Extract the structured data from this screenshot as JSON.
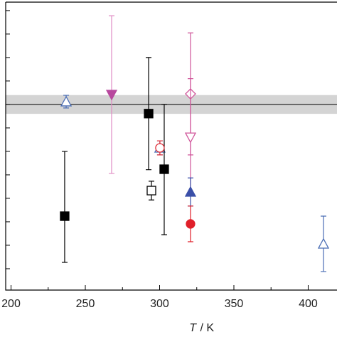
{
  "chart_data": {
    "type": "scatter",
    "x_label_symbol": "T",
    "x_label_unit": " / K",
    "xlim": [
      196.4,
      419.4
    ],
    "ylim": [
      0.09,
      12.36
    ],
    "xticks": [
      200,
      250,
      300,
      350,
      400
    ],
    "xminorticks": [
      225,
      275,
      325,
      375
    ],
    "yticks": [
      1,
      2,
      3,
      4,
      5,
      6,
      7,
      8,
      9,
      10,
      11,
      12
    ],
    "hline": 8,
    "band": [
      7.6,
      8.4
    ],
    "series": [
      {
        "marker": "triangle-up",
        "filled": false,
        "color": "#4a6db5",
        "x": [
          237.1,
          300.2,
          410.3
        ],
        "y": [
          8.12,
          6.15,
          2.06
        ],
        "yerr": [
          0.27,
          0.3,
          1.18
        ]
      },
      {
        "marker": "triangle-down",
        "filled": true,
        "color": "#b8489e",
        "err_color": "#e08cc4",
        "x": [
          267.7
        ],
        "y": [
          8.42
        ],
        "yerr": [
          3.36
        ]
      },
      {
        "marker": "square",
        "filled": true,
        "color": "#000000",
        "x": [
          236.1,
          292.6,
          303.1
        ],
        "y": [
          3.24,
          7.61,
          5.24
        ],
        "yerr": [
          [
            1.97,
            2.76
          ],
          [
            2.39,
            2.39
          ],
          [
            2.79,
            2.76
          ]
        ]
      },
      {
        "marker": "square",
        "filled": false,
        "color": "#000000",
        "x": [
          294.5
        ],
        "y": [
          4.33
        ],
        "yerr": [
          0.4
        ]
      },
      {
        "marker": "circle",
        "filled": false,
        "color": "#e0303a",
        "x": [
          300.2
        ],
        "y": [
          6.15
        ],
        "yerr": [
          0.3
        ]
      },
      {
        "marker": "diamond",
        "filled": false,
        "color": "#d0559a",
        "x": [
          320.8
        ],
        "y": [
          8.45
        ],
        "yerr": [
          2.6
        ]
      },
      {
        "marker": "triangle-down",
        "filled": false,
        "color": "#d0559a",
        "x": [
          320.8
        ],
        "y": [
          6.6
        ],
        "yerr": [
          2.5
        ]
      },
      {
        "marker": "triangle-up",
        "filled": true,
        "color": "#3a4fa8",
        "x": [
          320.8
        ],
        "y": [
          4.27
        ],
        "yerr": [
          0.6
        ]
      },
      {
        "marker": "circle",
        "filled": true,
        "color": "#e0202a",
        "x": [
          320.8
        ],
        "y": [
          2.91
        ],
        "yerr": [
          0.76
        ]
      }
    ]
  }
}
